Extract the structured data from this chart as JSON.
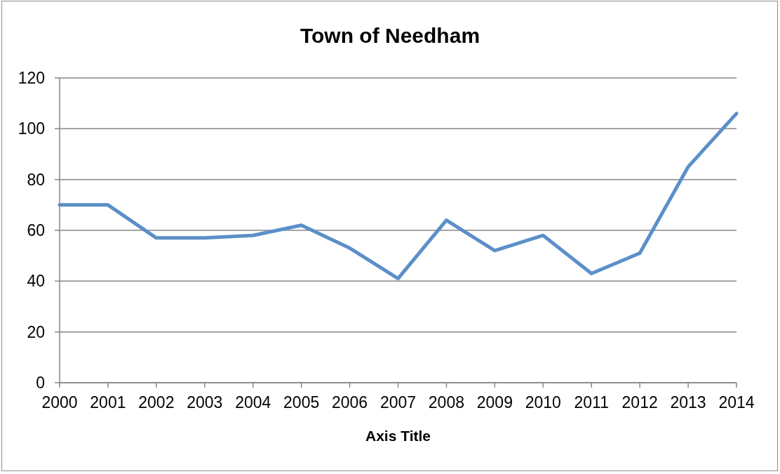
{
  "chart_data": {
    "type": "line",
    "title": "Town of Needham",
    "xlabel": "Axis Title",
    "categories": [
      "2000",
      "2001",
      "2002",
      "2003",
      "2004",
      "2005",
      "2006",
      "2007",
      "2008",
      "2009",
      "2010",
      "2011",
      "2012",
      "2013",
      "2014"
    ],
    "series": [
      {
        "color": "#5b8fc9",
        "values": [
          70,
          70,
          57,
          57,
          58,
          62,
          53,
          41,
          64,
          52,
          58,
          43,
          51,
          85,
          106
        ]
      }
    ],
    "ylim": [
      0,
      120
    ],
    "yticks": [
      0,
      20,
      40,
      60,
      80,
      100,
      120
    ],
    "grid": "y",
    "marker": "none",
    "line_style": "solid"
  }
}
